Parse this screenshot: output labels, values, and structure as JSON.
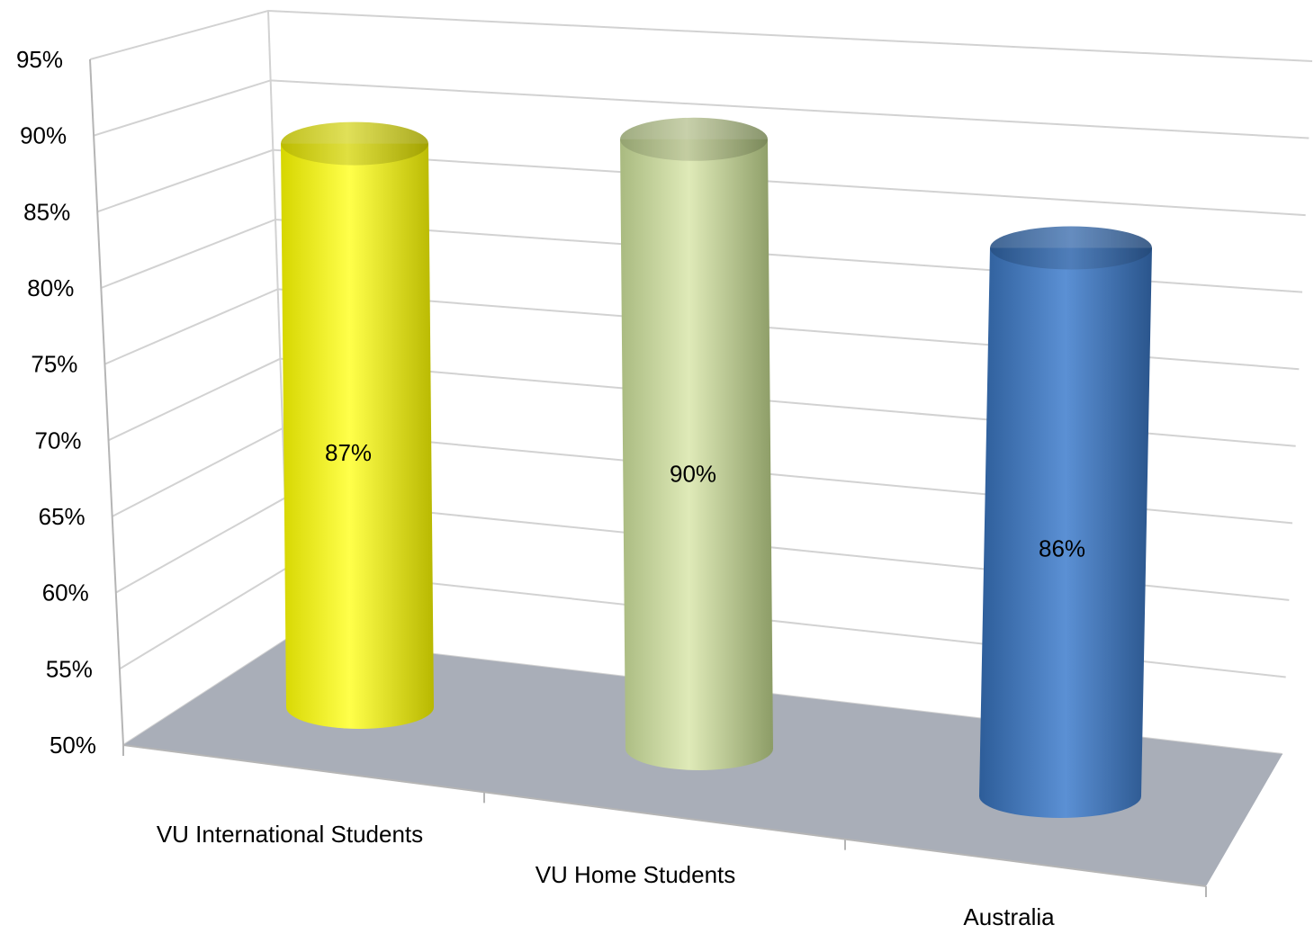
{
  "chart_data": {
    "type": "bar",
    "style": "3d-cylinder",
    "categories": [
      "VU International Students",
      "VU Home Students",
      "Australia"
    ],
    "values": [
      87,
      90,
      86
    ],
    "data_labels": [
      "87%",
      "90%",
      "86%"
    ],
    "ylim": [
      50,
      95
    ],
    "ytick_step": 5,
    "ytick_labels": [
      "50%",
      "55%",
      "60%",
      "65%",
      "70%",
      "75%",
      "80%",
      "85%",
      "90%",
      "95%"
    ],
    "colors": [
      "#f2f200",
      "#c4d49a",
      "#4a7ebf"
    ],
    "floor_color": "#a9aeb8",
    "grid": true,
    "legend": "none",
    "title": "",
    "xlabel": "",
    "ylabel": ""
  }
}
